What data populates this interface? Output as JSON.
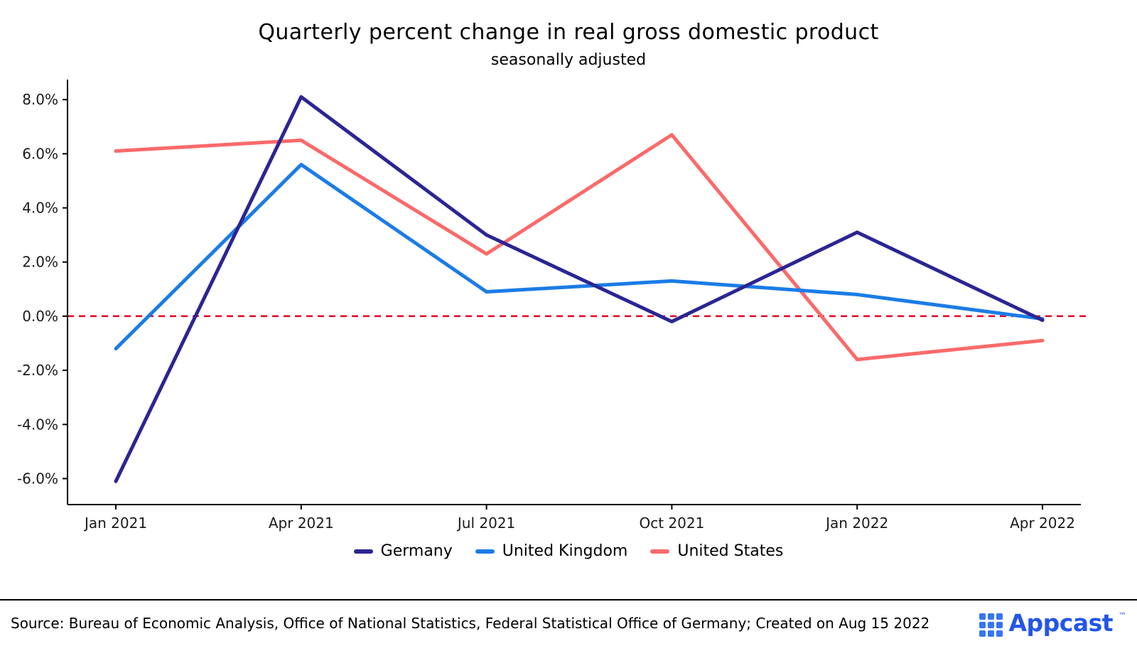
{
  "chart_data": {
    "type": "line",
    "title": "Quarterly percent change in real gross domestic product",
    "subtitle": "seasonally adjusted",
    "categories": [
      "Jan 2021",
      "Apr 2021",
      "Jul 2021",
      "Oct 2021",
      "Jan 2022",
      "Apr 2022"
    ],
    "series": [
      {
        "name": "Germany",
        "color": "#2b2593",
        "values": [
          -6.1,
          8.1,
          3.0,
          -0.2,
          3.1,
          -0.15
        ]
      },
      {
        "name": "United Kingdom",
        "color": "#1b7ce6",
        "values": [
          -1.2,
          5.6,
          0.9,
          1.3,
          0.8,
          -0.1
        ]
      },
      {
        "name": "United States",
        "color": "#fa6a6a",
        "values": [
          6.1,
          6.5,
          2.3,
          6.7,
          -1.6,
          -0.9
        ]
      }
    ],
    "ylim": [
      -6.96,
      8.74
    ],
    "yticks": [
      -6,
      -4,
      -2,
      0,
      2,
      4,
      6,
      8
    ],
    "ytick_format": "{v}.0%",
    "zero_line": {
      "value": 0,
      "color": "#e60023",
      "style": "dashed"
    },
    "legend_position": "bottom",
    "grid": false,
    "xlabel": "",
    "ylabel": ""
  },
  "footer": {
    "source": "Source: Bureau of Economic Analysis, Office of National Statistics,  Federal Statistical Office of Germany; Created on Aug 15 2022",
    "logo_text": "Appcast",
    "logo_tm": "™"
  }
}
